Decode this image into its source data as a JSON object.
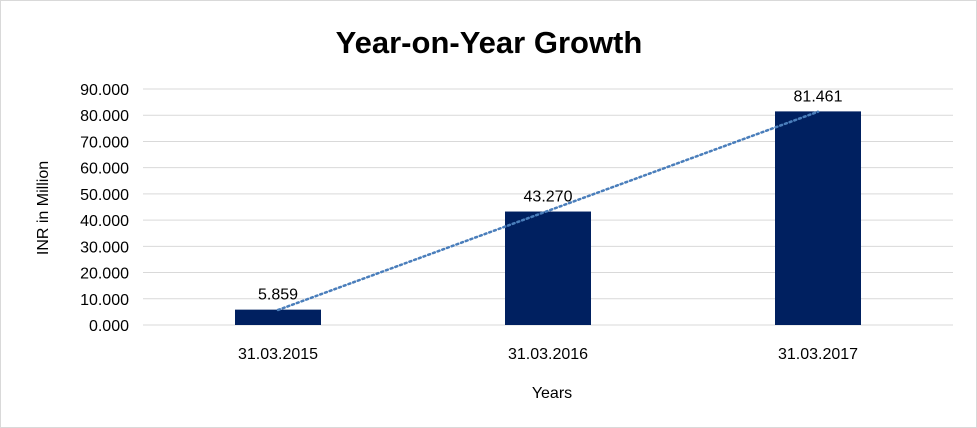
{
  "chart_data": {
    "type": "bar",
    "title": "Year-on-Year Growth",
    "xlabel": "Years",
    "ylabel": "INR in Million",
    "categories": [
      "31.03.2015",
      "31.03.2016",
      "31.03.2017"
    ],
    "values": [
      5.859,
      43.27,
      81.461
    ],
    "value_labels": [
      "5.859",
      "43.270",
      "81.461"
    ],
    "ylim": [
      0,
      90
    ],
    "yticks": [
      "0.000",
      "10.000",
      "20.000",
      "30.000",
      "40.000",
      "50.000",
      "60.000",
      "70.000",
      "80.000",
      "90.000"
    ],
    "grid": true,
    "legend": "none",
    "trendline": "linear, dotted",
    "colors": {
      "bar": "#002060",
      "trendline": "#4a7ebb",
      "grid": "#d9d9d9"
    }
  }
}
